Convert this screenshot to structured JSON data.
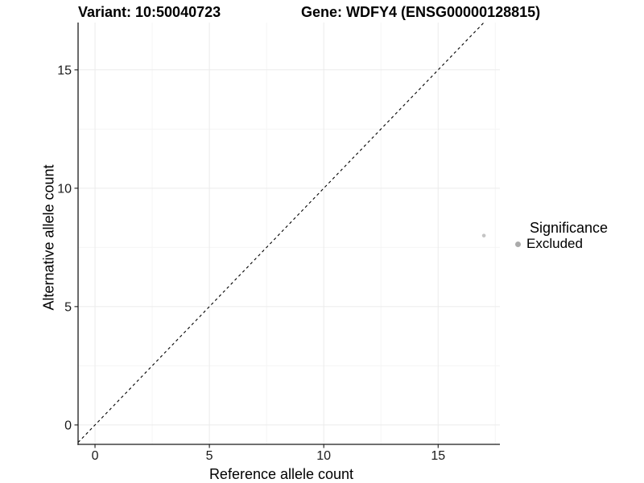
{
  "titles": {
    "variant": "Variant: 10:50040723",
    "gene": "Gene: WDFY4 (ENSG00000128815)"
  },
  "axes": {
    "x_label": "Reference allele count",
    "y_label": "Alternative allele count"
  },
  "legend": {
    "title": "Significance",
    "position": "right",
    "entries": [
      {
        "label": "Excluded",
        "color": "#ababab",
        "shape": "circle"
      }
    ]
  },
  "chart_data": {
    "type": "scatter",
    "title": "Variant: 10:50040723 — Gene: WDFY4 (ENSG00000128815)",
    "xlabel": "Reference allele count",
    "ylabel": "Alternative allele count",
    "xlim": [
      -0.74,
      17.7
    ],
    "ylim": [
      -0.82,
      17.0
    ],
    "x_major_ticks": [
      0,
      5,
      10,
      15
    ],
    "y_major_ticks": [
      0,
      5,
      10,
      15
    ],
    "x_minor_gridlines": [
      2.5,
      7.5,
      12.5,
      17.5
    ],
    "y_minor_gridlines": [
      2.5,
      7.5,
      12.5
    ],
    "grid": true,
    "legend_title": "Significance",
    "series": [
      {
        "name": "Excluded",
        "points": [
          {
            "x": 17,
            "y": 8
          }
        ],
        "color": "#c4c4c4",
        "radius_px": 2.3
      }
    ],
    "reference_line": {
      "label": "identity line y = x",
      "slope": 1,
      "intercept": 0,
      "style": "dashed",
      "color": "#000000"
    },
    "colors": {
      "background": "#ffffff",
      "major_grid": "#ebebeb",
      "minor_grid": "#f5f5f5",
      "axis": "#1a1a1a",
      "tick_text": "#1a1a1a"
    }
  }
}
